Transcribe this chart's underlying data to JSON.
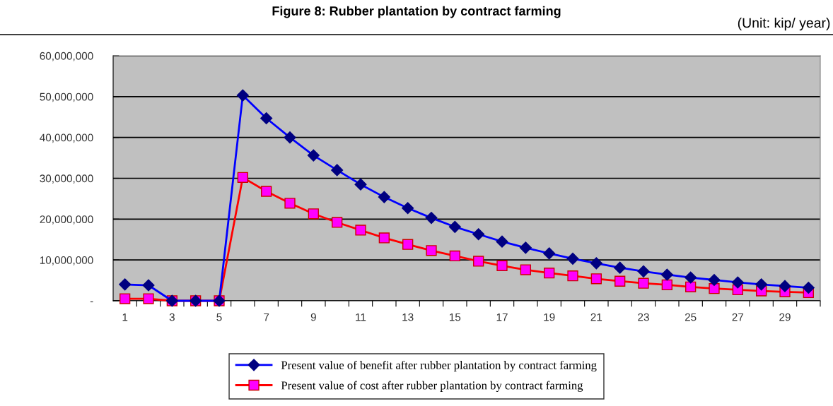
{
  "chart_data": {
    "type": "line",
    "title": "Figure 8: Rubber plantation by contract farming",
    "annotations": [
      "(Unit: kip/ year)"
    ],
    "categories": [
      "1",
      null,
      "3",
      null,
      "5",
      null,
      "7",
      null,
      "9",
      null,
      "11",
      null,
      "13",
      null,
      "15",
      null,
      "17",
      null,
      "19",
      null,
      "21",
      null,
      "23",
      null,
      "25",
      null,
      "27",
      null,
      "29",
      null
    ],
    "series": [
      {
        "name": "Present value of benefit after rubber plantation by contract farming",
        "color": "#0000ff",
        "marker": "diamond",
        "values": [
          4000000,
          3800000,
          0,
          0,
          0,
          50300000,
          44700000,
          40000000,
          35600000,
          32000000,
          28500000,
          25400000,
          22700000,
          20300000,
          18100000,
          16300000,
          14500000,
          13000000,
          11600000,
          10300000,
          9200000,
          8100000,
          7200000,
          6400000,
          5700000,
          5100000,
          4500000,
          4000000,
          3600000,
          3200000
        ]
      },
      {
        "name": "Present value of cost after rubber plantation by contract farming",
        "color": "#ff0000",
        "marker": "square",
        "values": [
          500000,
          500000,
          0,
          0,
          0,
          30200000,
          26800000,
          23900000,
          21300000,
          19200000,
          17300000,
          15400000,
          13800000,
          12300000,
          11000000,
          9700000,
          8600000,
          7600000,
          6800000,
          6100000,
          5400000,
          4800000,
          4300000,
          3900000,
          3400000,
          3000000,
          2700000,
          2400000,
          2200000,
          2000000
        ]
      }
    ],
    "ylim": [
      0,
      60000000
    ],
    "yticks": [
      {
        "value": 0,
        "label": "-"
      },
      {
        "value": 10000000,
        "label": "10,000,000"
      },
      {
        "value": 20000000,
        "label": "20,000,000"
      },
      {
        "value": 30000000,
        "label": "30,000,000"
      },
      {
        "value": 40000000,
        "label": "40,000,000"
      },
      {
        "value": 50000000,
        "label": "50,000,000"
      },
      {
        "value": 60000000,
        "label": "60,000,000"
      }
    ],
    "grid": "y",
    "legend": "bottom",
    "line_style": "solid"
  }
}
